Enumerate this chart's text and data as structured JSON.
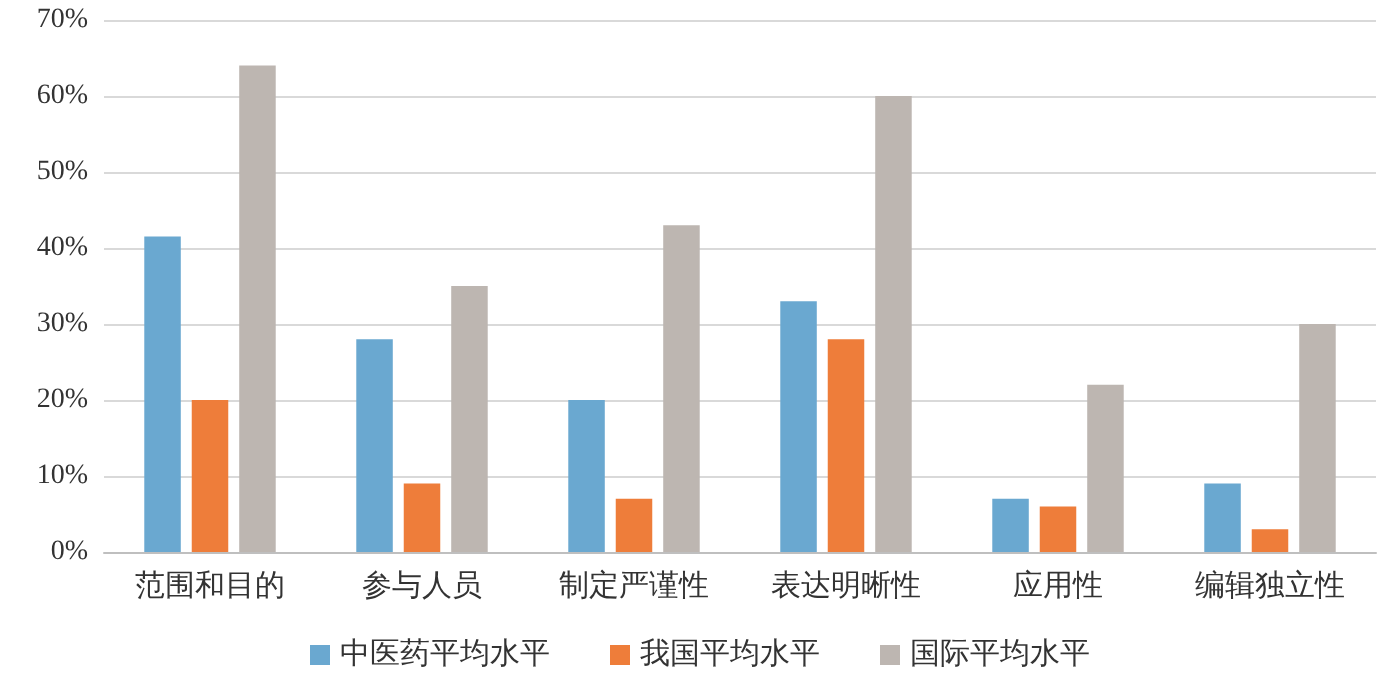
{
  "chart_data": {
    "type": "bar",
    "categories": [
      "范围和目的",
      "参与人员",
      "制定严谨性",
      "表达明晰性",
      "应用性",
      "编辑独立性"
    ],
    "series": [
      {
        "name": "中医药平均水平",
        "color": "#6aa8d0",
        "values": [
          41.5,
          28,
          20,
          33,
          7,
          9
        ]
      },
      {
        "name": "我国平均水平",
        "color": "#ee7d3a",
        "values": [
          20,
          9,
          7,
          28,
          6,
          3
        ]
      },
      {
        "name": "国际平均水平",
        "color": "#bdb6b1",
        "values": [
          64,
          35,
          43,
          60,
          22,
          30
        ]
      }
    ],
    "ylim": [
      0,
      70
    ],
    "yticks": [
      {
        "value": 0,
        "label": "0%"
      },
      {
        "value": 10,
        "label": "10%"
      },
      {
        "value": 20,
        "label": "20%"
      },
      {
        "value": 30,
        "label": "30%"
      },
      {
        "value": 40,
        "label": "40%"
      },
      {
        "value": 50,
        "label": "50%"
      },
      {
        "value": 60,
        "label": "60%"
      },
      {
        "value": 70,
        "label": "70%"
      }
    ],
    "grid": "y",
    "legend": "bottom"
  }
}
